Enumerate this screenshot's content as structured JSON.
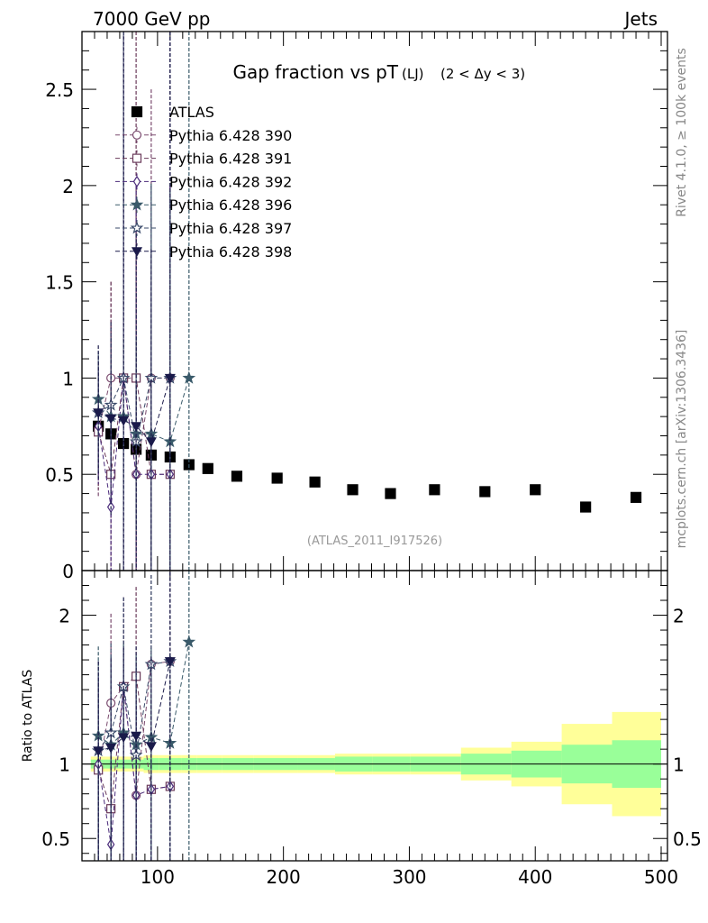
{
  "header": {
    "left": "7000 GeV pp",
    "right": "Jets",
    "title": "Gap fraction vs pT",
    "title_sub": "(LJ)",
    "title_range": "(2 < Δy < 3)",
    "side_top": "Rivet 4.1.0, ≥ 100k events",
    "side_bottom": "mcplots.cern.ch [arXiv:1306.3436]",
    "watermark": "(ATLAS_2011_I917526)",
    "ratio_ylabel": "Ratio to ATLAS"
  },
  "colors": {
    "data": "#000000",
    "p390": "#7a4a6e",
    "p391": "#6a3a5a",
    "p392": "#4a2a7a",
    "p396": "#3a5a6a",
    "p397": "#3a4a6a",
    "p398": "#1a1a4a",
    "band_inner": "#99ff99",
    "band_outer": "#ffff99"
  },
  "chart_data": [
    {
      "type": "scatter",
      "panel": "main",
      "xlim": [
        40,
        505
      ],
      "ylim": [
        0,
        2.8
      ],
      "y_ticks": [
        0,
        0.5,
        1,
        1.5,
        2,
        2.5
      ],
      "y_tick_labels": [
        "0",
        "0.5",
        "1",
        "1.5",
        "2",
        "2.5"
      ],
      "legend_position": "top-left",
      "series": [
        {
          "name": "ATLAS",
          "marker": "square-filled",
          "color_key": "data",
          "x": [
            53,
            63,
            73,
            83,
            95,
            110,
            125,
            140,
            163,
            195,
            225,
            255,
            285,
            320,
            360,
            400,
            440,
            480
          ],
          "y": [
            0.75,
            0.71,
            0.66,
            0.63,
            0.6,
            0.59,
            0.55,
            0.53,
            0.49,
            0.48,
            0.46,
            0.42,
            0.4,
            0.42,
            0.41,
            0.42,
            0.33,
            0.38
          ]
        },
        {
          "name": "Pythia 6.428 390",
          "marker": "circle-open",
          "color_key": "p390",
          "x": [
            53,
            63,
            73,
            83,
            95,
            110
          ],
          "y": [
            0.73,
            1.0,
            1.0,
            0.5,
            1.0,
            1.0
          ],
          "yerr": [
            0.35,
            0.5,
            2.0,
            1.5,
            1.5,
            2.0
          ]
        },
        {
          "name": "Pythia 6.428 391",
          "marker": "square-open",
          "color_key": "p391",
          "x": [
            53,
            63,
            73,
            83,
            95,
            110
          ],
          "y": [
            0.72,
            0.5,
            1.0,
            1.0,
            0.5,
            0.5
          ],
          "yerr": [
            0.3,
            1.0,
            2.0,
            2.0,
            0.7,
            1.5
          ]
        },
        {
          "name": "Pythia 6.428 392",
          "marker": "diamond-open",
          "color_key": "p392",
          "x": [
            53,
            63,
            73,
            83,
            95,
            110
          ],
          "y": [
            0.75,
            0.33,
            1.0,
            0.5,
            0.5,
            0.5
          ],
          "yerr": [
            0.3,
            0.5,
            2.0,
            1.5,
            1.0,
            1.5
          ]
        },
        {
          "name": "Pythia 6.428 396",
          "marker": "star-filled",
          "color_key": "p396",
          "x": [
            53,
            63,
            73,
            83,
            95,
            110,
            125
          ],
          "y": [
            0.89,
            0.8,
            0.8,
            0.71,
            0.71,
            0.67,
            1.0
          ],
          "yerr": [
            0.25,
            0.3,
            0.4,
            0.5,
            1.3,
            1.3,
            2.0
          ]
        },
        {
          "name": "Pythia 6.428 397",
          "marker": "star-open",
          "color_key": "p397",
          "x": [
            53,
            63,
            73,
            83,
            95,
            110
          ],
          "y": [
            0.82,
            0.86,
            1.0,
            0.67,
            1.0,
            1.0
          ],
          "yerr": [
            0.3,
            0.35,
            2.0,
            0.8,
            1.0,
            2.0
          ]
        },
        {
          "name": "Pythia 6.428 398",
          "marker": "triangle-down-filled",
          "color_key": "p398",
          "x": [
            53,
            63,
            73,
            83,
            95,
            110
          ],
          "y": [
            0.82,
            0.79,
            0.78,
            0.75,
            0.67,
            1.0
          ],
          "yerr": [
            0.35,
            0.5,
            2.0,
            1.0,
            1.0,
            2.0
          ]
        }
      ]
    },
    {
      "type": "scatter",
      "panel": "ratio",
      "xlim": [
        40,
        505
      ],
      "ylim": [
        0.35,
        2.3
      ],
      "xlabel": "",
      "ylabel": "Ratio to ATLAS",
      "x_ticks": [
        100,
        200,
        300,
        400,
        500
      ],
      "x_tick_labels": [
        "100",
        "200",
        "300",
        "400",
        "500"
      ],
      "y_ticks": [
        0.5,
        1,
        2
      ],
      "y_tick_labels": [
        "0.5",
        "1",
        "2"
      ],
      "bands": {
        "edges": [
          47,
          59,
          67,
          79,
          89,
          101,
          119,
          131,
          151,
          176,
          211,
          241,
          271,
          301,
          341,
          381,
          421,
          461,
          500
        ],
        "inner_low": [
          0.97,
          0.97,
          0.97,
          0.97,
          0.96,
          0.96,
          0.96,
          0.96,
          0.96,
          0.96,
          0.96,
          0.95,
          0.95,
          0.95,
          0.93,
          0.91,
          0.87,
          0.84
        ],
        "inner_high": [
          1.03,
          1.03,
          1.03,
          1.03,
          1.04,
          1.04,
          1.04,
          1.04,
          1.04,
          1.04,
          1.04,
          1.05,
          1.05,
          1.05,
          1.07,
          1.09,
          1.13,
          1.16
        ],
        "outer_low": [
          0.95,
          0.95,
          0.95,
          0.95,
          0.94,
          0.94,
          0.94,
          0.94,
          0.94,
          0.94,
          0.94,
          0.93,
          0.93,
          0.93,
          0.89,
          0.85,
          0.73,
          0.65
        ],
        "outer_high": [
          1.05,
          1.05,
          1.05,
          1.05,
          1.06,
          1.06,
          1.06,
          1.06,
          1.06,
          1.06,
          1.06,
          1.07,
          1.07,
          1.07,
          1.11,
          1.15,
          1.27,
          1.35
        ]
      },
      "series": [
        {
          "name": "Pythia 6.428 390",
          "marker": "circle-open",
          "color_key": "p390",
          "x": [
            53,
            63,
            73,
            83,
            95,
            110
          ],
          "y": [
            0.97,
            1.41,
            1.52,
            0.79,
            1.67,
            1.69
          ]
        },
        {
          "name": "Pythia 6.428 391",
          "marker": "square-open",
          "color_key": "p391",
          "x": [
            53,
            63,
            73,
            83,
            95,
            110
          ],
          "y": [
            0.96,
            0.7,
            1.52,
            1.59,
            0.83,
            0.85
          ]
        },
        {
          "name": "Pythia 6.428 392",
          "marker": "diamond-open",
          "color_key": "p392",
          "x": [
            53,
            63,
            73,
            83,
            95,
            110
          ],
          "y": [
            1.0,
            0.46,
            1.52,
            0.79,
            0.83,
            0.85
          ]
        },
        {
          "name": "Pythia 6.428 396",
          "marker": "star-filled",
          "color_key": "p396",
          "x": [
            53,
            63,
            73,
            83,
            95,
            110,
            125
          ],
          "y": [
            1.19,
            1.13,
            1.21,
            1.13,
            1.18,
            1.14,
            1.82
          ]
        },
        {
          "name": "Pythia 6.428 397",
          "marker": "star-open",
          "color_key": "p397",
          "x": [
            53,
            63,
            73,
            83,
            95,
            110
          ],
          "y": [
            1.09,
            1.21,
            1.52,
            1.06,
            1.67,
            1.69
          ]
        },
        {
          "name": "Pythia 6.428 398",
          "marker": "triangle-down-filled",
          "color_key": "p398",
          "x": [
            53,
            63,
            73,
            83,
            95,
            110
          ],
          "y": [
            1.09,
            1.11,
            1.18,
            1.19,
            1.12,
            1.69
          ]
        }
      ]
    }
  ]
}
